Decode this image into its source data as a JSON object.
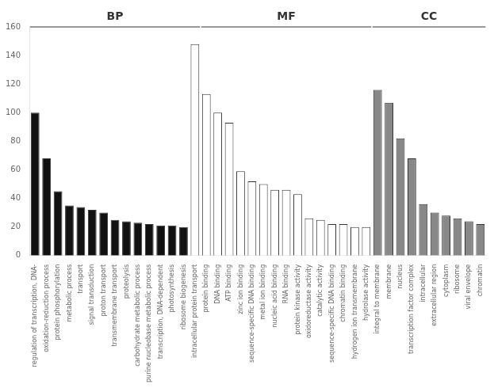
{
  "chart_data": {
    "type": "bar",
    "categories": [
      "regulation of transcription, DNA-",
      "oxidation-reduction process",
      "protein phosphorylation",
      "metabolic process",
      "transport",
      "signal transduction",
      "proton transport",
      "transmembrane transport",
      "proteolysis",
      "carbohydrate metabolic process",
      "purine nucleobase metabolic process",
      "transcription, DNA-dependent",
      "photosynthesis",
      "ribosome biogenesis",
      "intracellular protein transport",
      "protein binding",
      "DNA binding",
      "ATP binding",
      "zinc ion binding",
      "sequence-specific DNA binding",
      "metal ion binding",
      "nucleic acid binding",
      "RNA binding",
      "protein kinase activity",
      "oxidoreductase activity",
      "catalytic activity",
      "sequence-specific DNA binding",
      "chromatin binding",
      "hydrogen ion transmembrane",
      "hydrolase activity",
      "integral to membrane",
      "membrane",
      "nucleus",
      "transcription factor complex",
      "intracellular",
      "extracellular region",
      "cytoplasm",
      "ribosome",
      "viral envelope",
      "chromatin"
    ],
    "values": [
      100,
      68,
      45,
      35,
      34,
      32,
      30,
      25,
      24,
      23,
      22,
      21,
      21,
      20,
      148,
      113,
      100,
      93,
      59,
      52,
      50,
      46,
      46,
      43,
      26,
      25,
      22,
      22,
      20,
      20,
      116,
      107,
      82,
      68,
      36,
      30,
      28,
      26,
      24,
      22
    ],
    "colors": [
      "#111111",
      "#111111",
      "#111111",
      "#111111",
      "#111111",
      "#111111",
      "#111111",
      "#111111",
      "#111111",
      "#111111",
      "#111111",
      "#111111",
      "#111111",
      "#111111",
      "#ffffff",
      "#ffffff",
      "#ffffff",
      "#ffffff",
      "#ffffff",
      "#ffffff",
      "#ffffff",
      "#ffffff",
      "#ffffff",
      "#ffffff",
      "#ffffff",
      "#ffffff",
      "#ffffff",
      "#ffffff",
      "#ffffff",
      "#ffffff",
      "#888888",
      "#888888",
      "#888888",
      "#888888",
      "#888888",
      "#888888",
      "#888888",
      "#888888",
      "#888888",
      "#888888"
    ],
    "annotations": [
      {
        "text": "BP",
        "from": "regulation of transcription, DNA-",
        "to": "intracellular protein transport"
      },
      {
        "text": "MF",
        "from": "protein binding",
        "to": "hydrolase activity"
      },
      {
        "text": "CC",
        "from": "integral to membrane",
        "to": "chromatin"
      }
    ],
    "ylim": [
      0,
      160
    ],
    "yticks": [
      0,
      20,
      40,
      60,
      80,
      100,
      120,
      140,
      160
    ],
    "grid": false
  }
}
